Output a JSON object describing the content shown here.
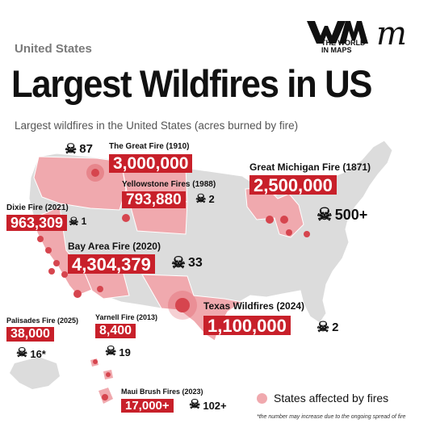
{
  "header": {
    "region": "United States",
    "title": "Largest Wildfires in US",
    "subtitle": "Largest wildfires in the United States (acres burned by fire)",
    "logo_text_line1": "THE WORLD",
    "logo_text_line2": "IN MAPS",
    "logo_mark": "m"
  },
  "colors": {
    "accent_red": "#c8202a",
    "affected_state": "#f0a9ae",
    "unaffected_state": "#dcdcdc",
    "fire_marker": "#d6454e"
  },
  "fires": [
    {
      "name": "The Great Fire (1910)",
      "acres": "3,000,000",
      "deaths": "87"
    },
    {
      "name": "Yellowstone Fires (1988)",
      "acres": "793,880",
      "deaths": "2"
    },
    {
      "name": "Great Michigan Fire (1871)",
      "acres": "2,500,000",
      "deaths": "500+"
    },
    {
      "name": "Dixie Fire (2021)",
      "acres": "963,309",
      "deaths": "1"
    },
    {
      "name": "Bay Area Fire (2020)",
      "acres": "4,304,379",
      "deaths": "33"
    },
    {
      "name": "Texas Wildfires (2024)",
      "acres": "1,100,000",
      "deaths": "2"
    },
    {
      "name": "Palisades Fire (2025)",
      "acres": "38,000",
      "deaths": "16*"
    },
    {
      "name": "Yarnell Fire (2013)",
      "acres": "8,400",
      "deaths": "19"
    },
    {
      "name": "Maui Brush Fires (2023)",
      "acres": "17,000+",
      "deaths": "102+"
    }
  ],
  "legend": {
    "label": "States affected by fires"
  },
  "footnote": "*the number may increase due to the ongoing spread of fire",
  "icons": {
    "death": "skull-crossbones-icon"
  }
}
